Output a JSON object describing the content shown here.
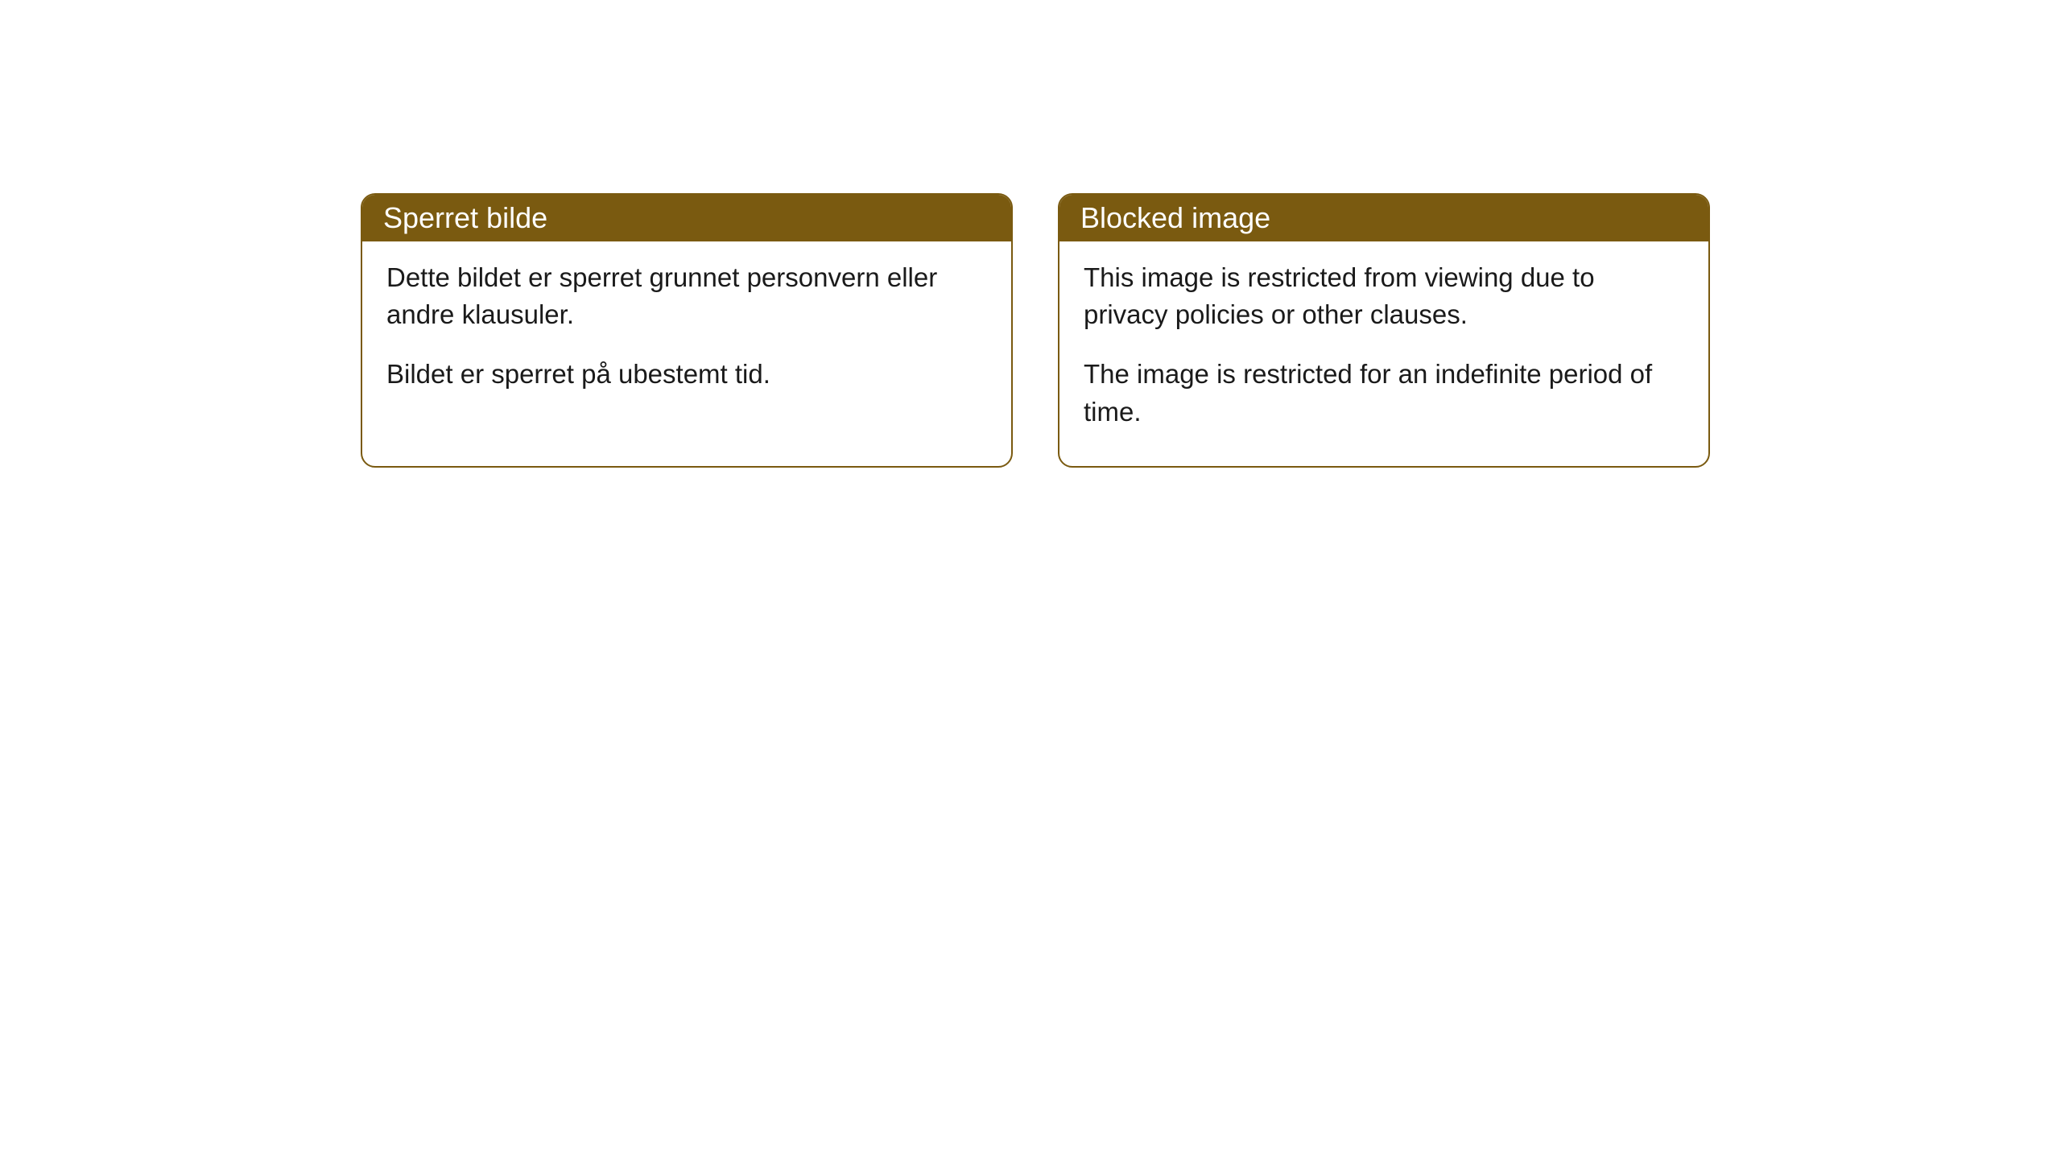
{
  "cards": [
    {
      "title": "Sperret bilde",
      "paragraph1": "Dette bildet er sperret grunnet personvern eller andre klausuler.",
      "paragraph2": "Bildet er sperret på ubestemt tid."
    },
    {
      "title": "Blocked image",
      "paragraph1": "This image is restricted from viewing due to privacy policies or other clauses.",
      "paragraph2": "The image is restricted for an indefinite period of time."
    }
  ],
  "style": {
    "header_background": "#7a5a10",
    "header_text_color": "#ffffff",
    "border_color": "#7a5a10",
    "body_background": "#ffffff",
    "body_text_color": "#1a1a1a",
    "border_radius": 18,
    "title_fontsize": 36,
    "body_fontsize": 33
  }
}
